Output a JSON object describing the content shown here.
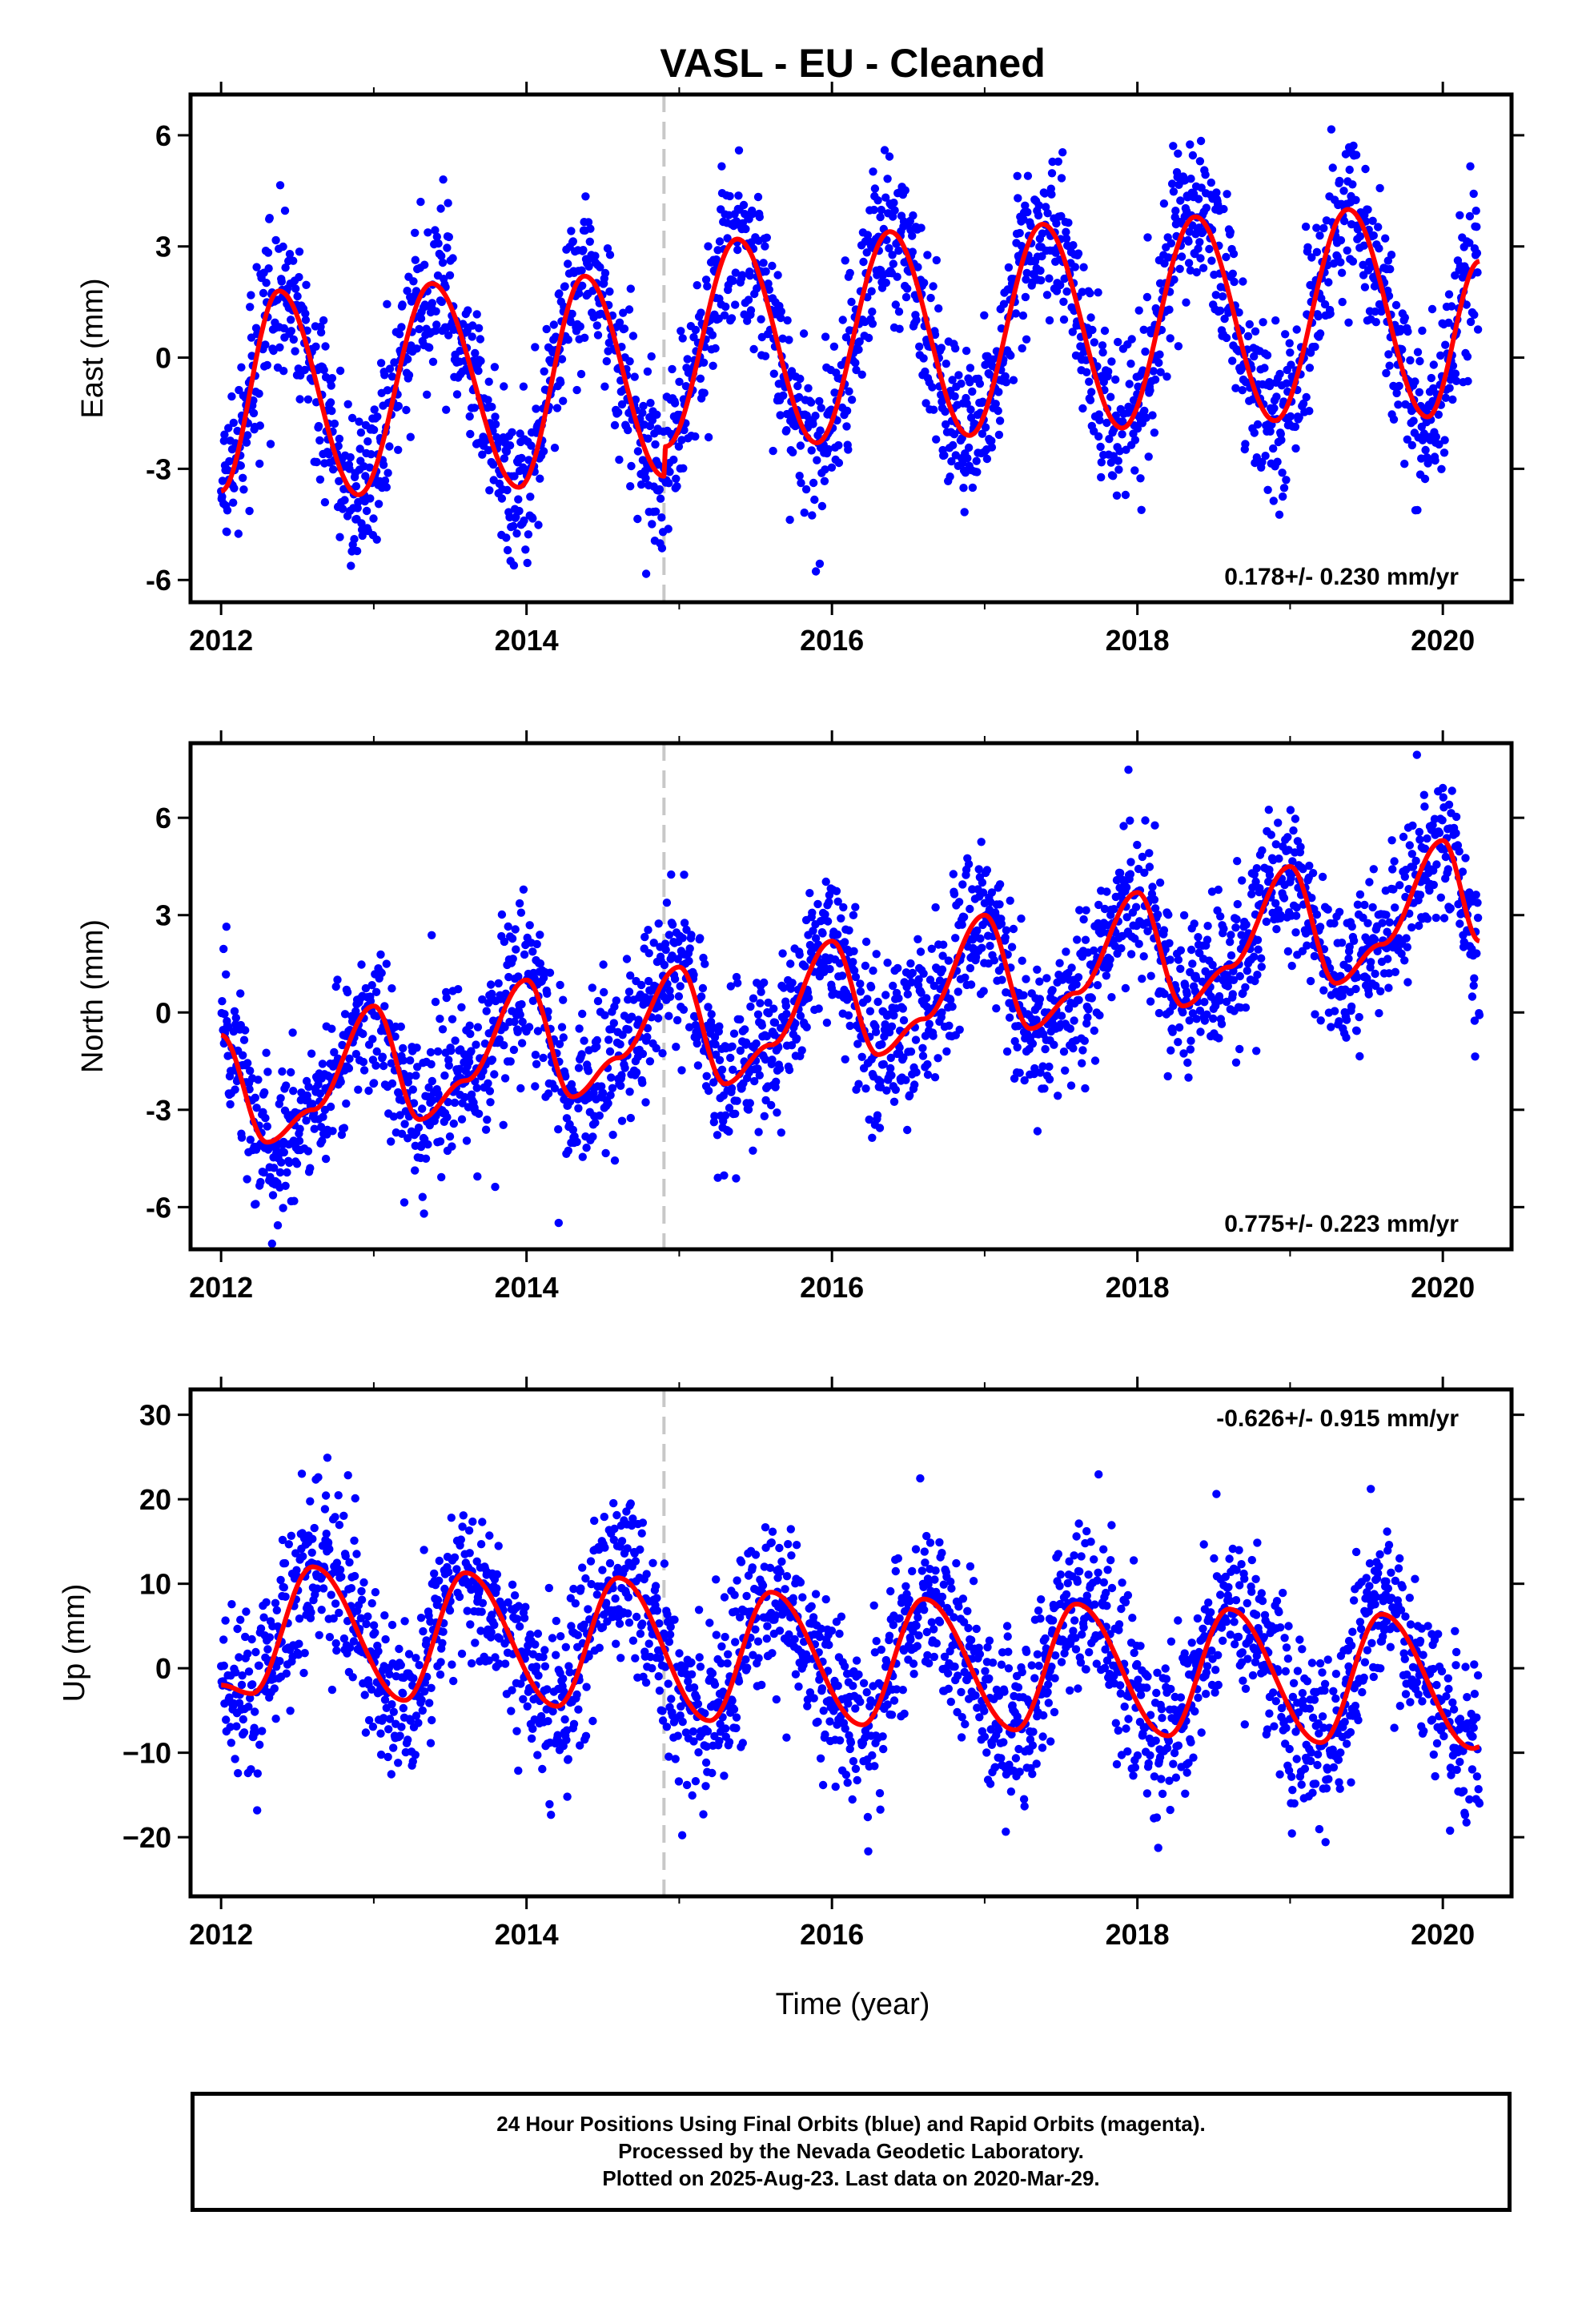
{
  "figure_title": "VASL  - EU - Cleaned",
  "colors": {
    "points": "#0000ff",
    "fit": "#ff0000",
    "offset_line": "#c8c8c8",
    "frame": "#000000"
  },
  "chart_data": [
    {
      "type": "scatter",
      "component": "East",
      "ylabel": "East (mm)",
      "xlabel": "",
      "xlim": [
        2011.8,
        2020.45
      ],
      "ylim": [
        -6.6,
        7.1
      ],
      "xticks": [
        "2012",
        "2014",
        "2016",
        "2018",
        "2020"
      ],
      "yticks": [
        "-6",
        "-3",
        "0",
        "3",
        "6"
      ],
      "ytick_values": [
        -6,
        -3,
        0,
        3,
        6
      ],
      "rate_label": "0.178+/- 0.230 mm/yr",
      "rate_position": "bottom-right",
      "offset_epoch": 2014.9,
      "data_start": 2012.0,
      "data_end": 2020.24,
      "series": [
        {
          "name": "",
          "kind": "points",
          "trend": {
            "value_2012": -0.7,
            "rate_mm_per_yr": 0.178
          },
          "annual": {
            "amplitude": 2.6,
            "peak_phase_yr": 0.4
          },
          "scatter_sd": 1.1
        },
        {
          "name": "",
          "kind": "fit",
          "values": [
            [
              2012.0,
              -3.6
            ],
            [
              2012.38,
              1.8
            ],
            [
              2012.9,
              -3.7
            ],
            [
              2013.38,
              2.0
            ],
            [
              2013.95,
              -3.5
            ],
            [
              2014.38,
              2.2
            ],
            [
              2014.9,
              -3.2
            ],
            [
              2014.91,
              -2.4
            ],
            [
              2015.38,
              3.2
            ],
            [
              2015.9,
              -2.3
            ],
            [
              2016.38,
              3.4
            ],
            [
              2016.9,
              -2.1
            ],
            [
              2017.38,
              3.6
            ],
            [
              2017.9,
              -1.9
            ],
            [
              2018.38,
              3.8
            ],
            [
              2018.9,
              -1.7
            ],
            [
              2019.38,
              4.0
            ],
            [
              2019.9,
              -1.6
            ],
            [
              2020.24,
              2.6
            ]
          ]
        }
      ]
    },
    {
      "type": "scatter",
      "component": "North",
      "ylabel": "North (mm)",
      "xlabel": "",
      "xlim": [
        2011.8,
        2020.45
      ],
      "ylim": [
        -7.3,
        8.3
      ],
      "xticks": [
        "2012",
        "2014",
        "2016",
        "2018",
        "2020"
      ],
      "yticks": [
        "-6",
        "-3",
        "0",
        "3",
        "6"
      ],
      "ytick_values": [
        -6,
        -3,
        0,
        3,
        6
      ],
      "rate_label": "0.775+/- 0.223 mm/yr",
      "rate_position": "bottom-right",
      "offset_epoch": 2014.9,
      "data_start": 2012.0,
      "data_end": 2020.24,
      "series": [
        {
          "name": "",
          "kind": "points",
          "trend": {
            "value_2012": -2.8,
            "rate_mm_per_yr": 0.775
          },
          "annual": {
            "amplitude": 1.6,
            "peak_phase_yr": 0.0
          },
          "scatter_sd": 1.2
        },
        {
          "name": "",
          "kind": "fit",
          "values": [
            [
              2012.0,
              -0.7
            ],
            [
              2012.3,
              -4.0
            ],
            [
              2012.6,
              -3.0
            ],
            [
              2013.0,
              0.2
            ],
            [
              2013.3,
              -3.3
            ],
            [
              2013.6,
              -2.1
            ],
            [
              2014.0,
              1.0
            ],
            [
              2014.3,
              -2.6
            ],
            [
              2014.6,
              -1.4
            ],
            [
              2015.0,
              1.4
            ],
            [
              2015.3,
              -2.2
            ],
            [
              2015.6,
              -1.0
            ],
            [
              2016.0,
              2.2
            ],
            [
              2016.3,
              -1.3
            ],
            [
              2016.6,
              -0.2
            ],
            [
              2017.0,
              3.0
            ],
            [
              2017.3,
              -0.5
            ],
            [
              2017.6,
              0.6
            ],
            [
              2018.0,
              3.7
            ],
            [
              2018.3,
              0.2
            ],
            [
              2018.6,
              1.4
            ],
            [
              2019.0,
              4.5
            ],
            [
              2019.3,
              0.9
            ],
            [
              2019.6,
              2.1
            ],
            [
              2020.0,
              5.3
            ],
            [
              2020.24,
              2.2
            ]
          ]
        }
      ]
    },
    {
      "type": "scatter",
      "component": "Up",
      "ylabel": "Up (mm)",
      "xlabel": "Time (year)",
      "xlim": [
        2011.8,
        2020.45
      ],
      "ylim": [
        -27.0,
        33.0
      ],
      "xticks": [
        "2012",
        "2014",
        "2016",
        "2018",
        "2020"
      ],
      "yticks": [
        "−20",
        "−10",
        "0",
        "10",
        "20",
        "30"
      ],
      "ytick_values": [
        -20,
        -10,
        0,
        10,
        20,
        30
      ],
      "rate_label": "-0.626+/- 0.915 mm/yr",
      "rate_position": "top-right",
      "offset_epoch": 2014.9,
      "data_start": 2012.0,
      "data_end": 2020.24,
      "series": [
        {
          "name": "",
          "kind": "points",
          "trend": {
            "value_2012": 3.0,
            "rate_mm_per_yr": -0.626
          },
          "annual": {
            "amplitude": 8.5,
            "peak_phase_yr": 0.6
          },
          "scatter_sd": 5.2
        },
        {
          "name": "",
          "kind": "fit",
          "values": [
            [
              2012.0,
              -2.0
            ],
            [
              2012.2,
              -3.0
            ],
            [
              2012.6,
              12.0
            ],
            [
              2013.2,
              -3.8
            ],
            [
              2013.6,
              11.3
            ],
            [
              2014.2,
              -4.5
            ],
            [
              2014.6,
              10.7
            ],
            [
              2015.2,
              -6.2
            ],
            [
              2015.6,
              9.0
            ],
            [
              2016.2,
              -6.7
            ],
            [
              2016.6,
              8.2
            ],
            [
              2017.2,
              -7.3
            ],
            [
              2017.6,
              7.6
            ],
            [
              2018.2,
              -8.0
            ],
            [
              2018.6,
              7.0
            ],
            [
              2019.2,
              -8.8
            ],
            [
              2019.6,
              6.4
            ],
            [
              2020.2,
              -9.5
            ],
            [
              2020.24,
              -9.3
            ]
          ]
        }
      ]
    }
  ],
  "caption": {
    "line1": "24 Hour Positions Using Final Orbits (blue) and Rapid Orbits (magenta).",
    "line2": "Processed by the Nevada Geodetic Laboratory.",
    "line3": "Plotted on 2025-Aug-23. Last data on 2020-Mar-29."
  }
}
